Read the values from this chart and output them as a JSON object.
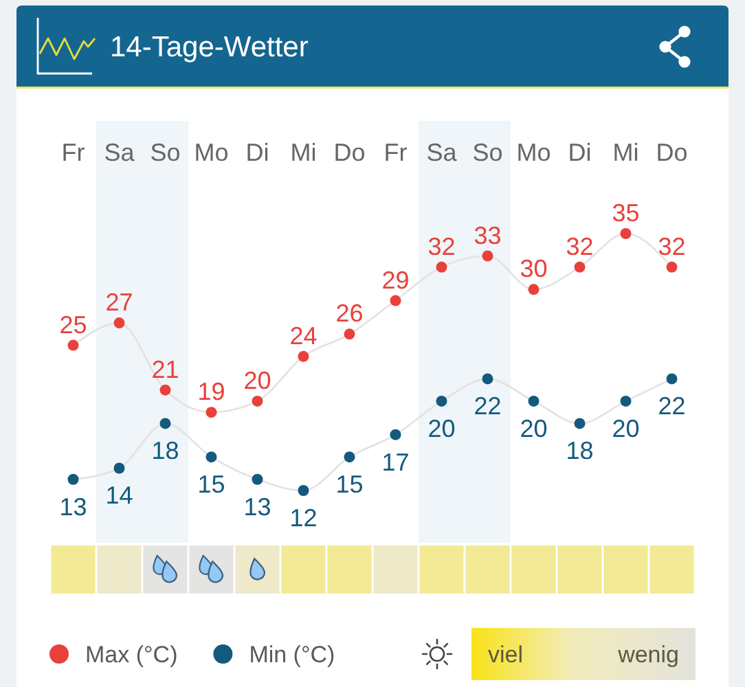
{
  "chart_data": {
    "type": "line",
    "title": "14-Tage-Wetter",
    "categories": [
      "Fr",
      "Sa",
      "So",
      "Mo",
      "Di",
      "Mi",
      "Do",
      "Fr",
      "Sa",
      "So",
      "Mo",
      "Di",
      "Mi",
      "Do"
    ],
    "series": [
      {
        "name": "Max (°C)",
        "color": "#e8413b",
        "values": [
          25,
          27,
          21,
          19,
          20,
          24,
          26,
          29,
          32,
          33,
          30,
          32,
          35,
          32
        ]
      },
      {
        "name": "Min (°C)",
        "color": "#14597e",
        "values": [
          13,
          14,
          18,
          15,
          13,
          12,
          15,
          17,
          20,
          22,
          20,
          18,
          20,
          22
        ]
      }
    ],
    "tick_labels": "x",
    "data_labels": true,
    "marker": "circle",
    "legend": "bottom left",
    "annotations": [
      "viel",
      "wenig"
    ]
  }
}
